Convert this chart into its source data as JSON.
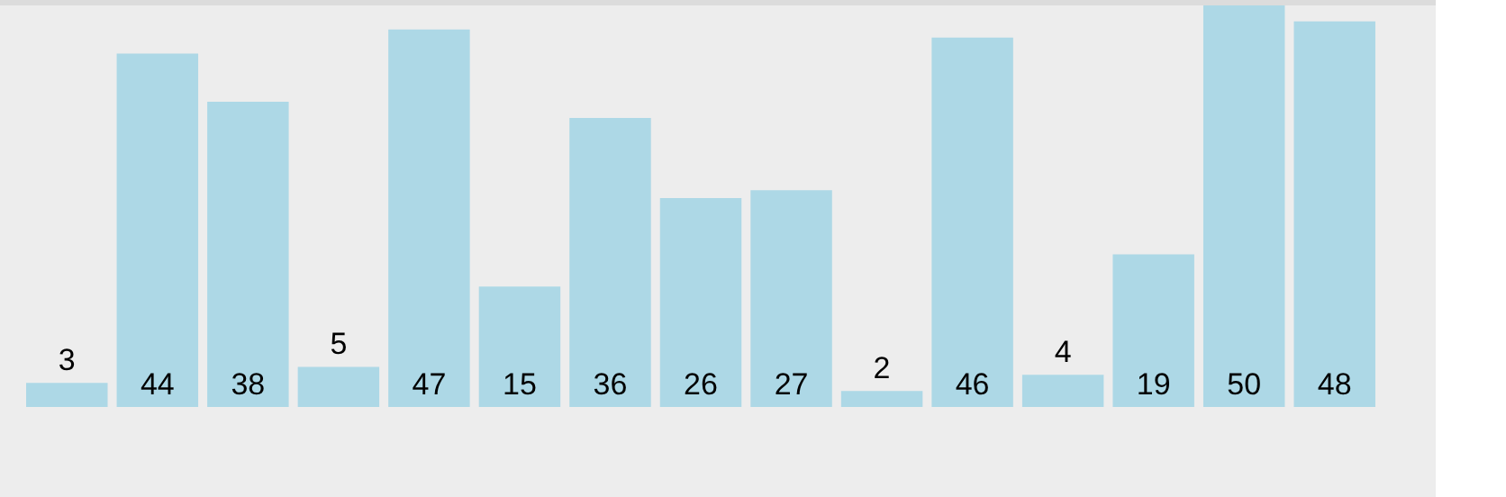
{
  "chart_data": {
    "type": "bar",
    "categories": [
      null,
      null,
      null,
      null,
      null,
      null,
      null,
      null,
      null,
      null,
      null,
      null,
      null,
      null,
      null
    ],
    "values": [
      3,
      44,
      38,
      5,
      47,
      15,
      36,
      26,
      27,
      2,
      46,
      4,
      19,
      50,
      48
    ],
    "color": "#add8e6",
    "data_labels": true
  }
}
